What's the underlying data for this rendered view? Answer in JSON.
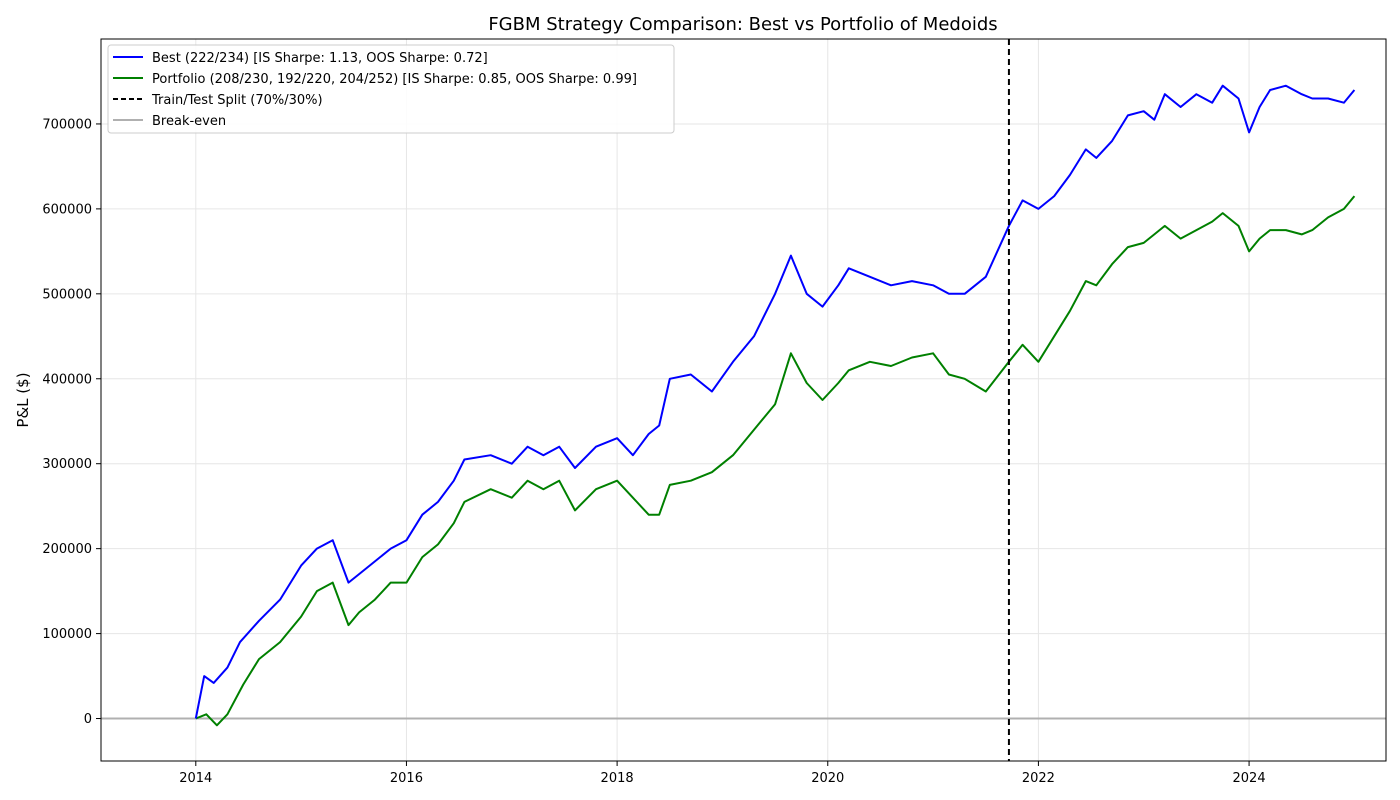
{
  "chart_data": {
    "type": "line",
    "title": "FGBM Strategy Comparison: Best vs Portfolio of Medoids",
    "xlabel": "",
    "ylabel": "P&L ($)",
    "xlim": [
      2013.1,
      2025.3
    ],
    "ylim": [
      -50000,
      800000
    ],
    "xticks": [
      "2014",
      "2016",
      "2018",
      "2020",
      "2022",
      "2024"
    ],
    "yticks": [
      "0",
      "100000",
      "200000",
      "300000",
      "400000",
      "500000",
      "600000",
      "700000"
    ],
    "grid": true,
    "legend_position": "upper left",
    "series": [
      {
        "name": "Best (222/234) [IS Sharpe: 1.13, OOS Sharpe: 0.72]",
        "color": "#0000ff",
        "x": [
          2014.0,
          2014.08,
          2014.17,
          2014.3,
          2014.42,
          2014.6,
          2014.8,
          2015.0,
          2015.15,
          2015.3,
          2015.45,
          2015.55,
          2015.7,
          2015.85,
          2016.0,
          2016.15,
          2016.3,
          2016.45,
          2016.55,
          2016.8,
          2017.0,
          2017.15,
          2017.3,
          2017.45,
          2017.6,
          2017.8,
          2018.0,
          2018.15,
          2018.3,
          2018.4,
          2018.5,
          2018.7,
          2018.9,
          2019.1,
          2019.3,
          2019.5,
          2019.65,
          2019.8,
          2019.95,
          2020.1,
          2020.2,
          2020.4,
          2020.6,
          2020.8,
          2021.0,
          2021.15,
          2021.3,
          2021.5,
          2021.72,
          2021.85,
          2022.0,
          2022.15,
          2022.3,
          2022.45,
          2022.55,
          2022.7,
          2022.85,
          2023.0,
          2023.1,
          2023.2,
          2023.35,
          2023.5,
          2023.65,
          2023.75,
          2023.9,
          2024.0,
          2024.1,
          2024.2,
          2024.35,
          2024.5,
          2024.6,
          2024.75,
          2024.9,
          2025.0
        ],
        "y": [
          0,
          50000,
          42000,
          60000,
          90000,
          115000,
          140000,
          180000,
          200000,
          210000,
          160000,
          170000,
          185000,
          200000,
          210000,
          240000,
          255000,
          280000,
          305000,
          310000,
          300000,
          320000,
          310000,
          320000,
          295000,
          320000,
          330000,
          310000,
          335000,
          345000,
          400000,
          405000,
          385000,
          420000,
          450000,
          500000,
          545000,
          500000,
          485000,
          510000,
          530000,
          520000,
          510000,
          515000,
          510000,
          500000,
          500000,
          520000,
          580000,
          610000,
          600000,
          615000,
          640000,
          670000,
          660000,
          680000,
          710000,
          715000,
          705000,
          735000,
          720000,
          735000,
          725000,
          745000,
          730000,
          690000,
          720000,
          740000,
          745000,
          735000,
          730000,
          730000,
          725000,
          740000
        ]
      },
      {
        "name": "Portfolio (208/230, 192/220, 204/252) [IS Sharpe: 0.85, OOS Sharpe: 0.99]",
        "color": "#008000",
        "x": [
          2014.0,
          2014.1,
          2014.2,
          2014.3,
          2014.45,
          2014.6,
          2014.8,
          2015.0,
          2015.15,
          2015.3,
          2015.45,
          2015.55,
          2015.7,
          2015.85,
          2016.0,
          2016.15,
          2016.3,
          2016.45,
          2016.55,
          2016.8,
          2017.0,
          2017.15,
          2017.3,
          2017.45,
          2017.6,
          2017.8,
          2018.0,
          2018.15,
          2018.3,
          2018.4,
          2018.5,
          2018.7,
          2018.9,
          2019.1,
          2019.3,
          2019.5,
          2019.65,
          2019.8,
          2019.95,
          2020.1,
          2020.2,
          2020.4,
          2020.6,
          2020.8,
          2021.0,
          2021.15,
          2021.3,
          2021.5,
          2021.72,
          2021.85,
          2022.0,
          2022.15,
          2022.3,
          2022.45,
          2022.55,
          2022.7,
          2022.85,
          2023.0,
          2023.1,
          2023.2,
          2023.35,
          2023.5,
          2023.65,
          2023.75,
          2023.9,
          2024.0,
          2024.1,
          2024.2,
          2024.35,
          2024.5,
          2024.6,
          2024.75,
          2024.9,
          2025.0
        ],
        "y": [
          0,
          5000,
          -8000,
          5000,
          40000,
          70000,
          90000,
          120000,
          150000,
          160000,
          110000,
          125000,
          140000,
          160000,
          160000,
          190000,
          205000,
          230000,
          255000,
          270000,
          260000,
          280000,
          270000,
          280000,
          245000,
          270000,
          280000,
          260000,
          240000,
          240000,
          275000,
          280000,
          290000,
          310000,
          340000,
          370000,
          430000,
          395000,
          375000,
          395000,
          410000,
          420000,
          415000,
          425000,
          430000,
          405000,
          400000,
          385000,
          420000,
          440000,
          420000,
          450000,
          480000,
          515000,
          510000,
          535000,
          555000,
          560000,
          570000,
          580000,
          565000,
          575000,
          585000,
          595000,
          580000,
          550000,
          565000,
          575000,
          575000,
          570000,
          575000,
          590000,
          600000,
          615000
        ]
      },
      {
        "name": "Train/Test Split (70%/30%)",
        "color": "#000000",
        "x_value": 2021.72
      },
      {
        "name": "Break-even",
        "color": "#b0b0b0",
        "y_value": 0
      }
    ]
  }
}
